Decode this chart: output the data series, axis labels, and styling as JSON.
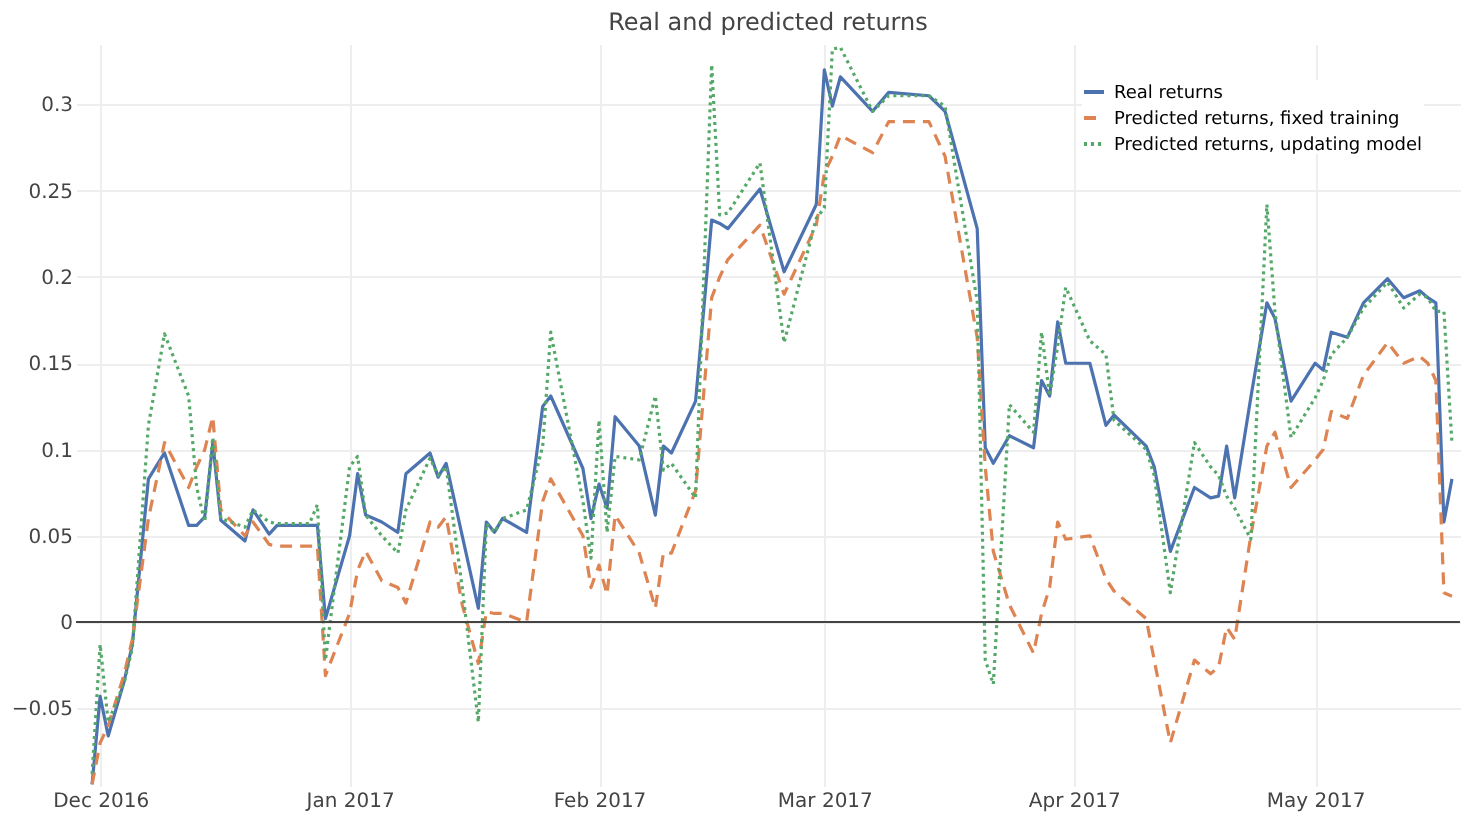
{
  "chart_data": {
    "type": "line",
    "title": "Real and predicted returns",
    "x": [
      "2016-11-30",
      "2016-12-01",
      "2016-12-02",
      "2016-12-04",
      "2016-12-05",
      "2016-12-07",
      "2016-12-09",
      "2016-12-12",
      "2016-12-13",
      "2016-12-14",
      "2016-12-15",
      "2016-12-16",
      "2016-12-19",
      "2016-12-20",
      "2016-12-22",
      "2016-12-23",
      "2016-12-27",
      "2016-12-28",
      "2016-12-29",
      "2017-01-01",
      "2017-01-02",
      "2017-01-03",
      "2017-01-05",
      "2017-01-07",
      "2017-01-08",
      "2017-01-11",
      "2017-01-12",
      "2017-01-13",
      "2017-01-15",
      "2017-01-17",
      "2017-01-18",
      "2017-01-19",
      "2017-01-20",
      "2017-01-23",
      "2017-01-25",
      "2017-01-26",
      "2017-01-30",
      "2017-01-31",
      "2017-02-01",
      "2017-02-02",
      "2017-02-03",
      "2017-02-06",
      "2017-02-08",
      "2017-02-09",
      "2017-02-10",
      "2017-02-13",
      "2017-02-15",
      "2017-02-16",
      "2017-02-17",
      "2017-02-21",
      "2017-02-24",
      "2017-02-28",
      "2017-03-01",
      "2017-03-02",
      "2017-03-03",
      "2017-03-07",
      "2017-03-09",
      "2017-03-14",
      "2017-03-16",
      "2017-03-20",
      "2017-03-21",
      "2017-03-22",
      "2017-03-24",
      "2017-03-27",
      "2017-03-28",
      "2017-03-29",
      "2017-03-30",
      "2017-03-31",
      "2017-04-03",
      "2017-04-05",
      "2017-04-06",
      "2017-04-10",
      "2017-04-11",
      "2017-04-13",
      "2017-04-16",
      "2017-04-18",
      "2017-04-19",
      "2017-04-20",
      "2017-04-21",
      "2017-04-23",
      "2017-04-25",
      "2017-04-26",
      "2017-04-28",
      "2017-05-01",
      "2017-05-02",
      "2017-05-03",
      "2017-05-05",
      "2017-05-07",
      "2017-05-10",
      "2017-05-12",
      "2017-05-14",
      "2017-05-15",
      "2017-05-16",
      "2017-05-17",
      "2017-05-18"
    ],
    "series": [
      {
        "name": "Real returns",
        "color": "#4c72b0",
        "line_style": "solid",
        "values": [
          -0.094,
          -0.043,
          -0.066,
          -0.034,
          -0.013,
          0.083,
          0.098,
          0.056,
          0.056,
          0.061,
          0.104,
          0.059,
          0.047,
          0.065,
          0.051,
          0.056,
          0.056,
          0.056,
          0.002,
          0.05,
          0.086,
          0.062,
          0.058,
          0.052,
          0.086,
          0.098,
          0.084,
          0.092,
          0.05,
          0.008,
          0.058,
          0.052,
          0.06,
          0.052,
          0.125,
          0.131,
          0.089,
          0.06,
          0.08,
          0.066,
          0.119,
          0.102,
          0.062,
          0.102,
          0.098,
          0.128,
          0.233,
          0.231,
          0.228,
          0.251,
          0.203,
          0.242,
          0.32,
          0.299,
          0.316,
          0.296,
          0.307,
          0.305,
          0.296,
          0.228,
          0.101,
          0.092,
          0.108,
          0.101,
          0.14,
          0.131,
          0.174,
          0.15,
          0.15,
          0.114,
          0.12,
          0.102,
          0.09,
          0.041,
          0.078,
          0.072,
          0.073,
          0.102,
          0.072,
          0.13,
          0.185,
          0.176,
          0.128,
          0.15,
          0.146,
          0.168,
          0.165,
          0.185,
          0.199,
          0.188,
          0.192,
          0.188,
          0.185,
          0.058,
          0.083
        ]
      },
      {
        "name": "Predicted returns, fixed training",
        "color": "#dd8452",
        "line_style": "dashed",
        "values": [
          -0.094,
          -0.07,
          -0.06,
          -0.03,
          -0.01,
          0.06,
          0.104,
          0.078,
          0.09,
          0.1,
          0.119,
          0.065,
          0.05,
          0.058,
          0.045,
          0.044,
          0.044,
          0.044,
          -0.031,
          0.005,
          0.03,
          0.041,
          0.024,
          0.02,
          0.011,
          0.058,
          0.055,
          0.061,
          0.01,
          -0.024,
          0.006,
          0.005,
          0.005,
          0.0,
          0.07,
          0.083,
          0.05,
          0.02,
          0.033,
          0.016,
          0.062,
          0.04,
          0.008,
          0.04,
          0.04,
          0.076,
          0.188,
          0.2,
          0.21,
          0.23,
          0.19,
          0.23,
          0.26,
          0.27,
          0.282,
          0.272,
          0.29,
          0.29,
          0.27,
          0.165,
          0.09,
          0.041,
          0.01,
          -0.018,
          0.005,
          0.02,
          0.058,
          0.048,
          0.05,
          0.025,
          0.018,
          0.002,
          -0.022,
          -0.07,
          -0.022,
          -0.03,
          -0.026,
          -0.003,
          -0.01,
          0.05,
          0.102,
          0.11,
          0.078,
          0.094,
          0.1,
          0.122,
          0.118,
          0.143,
          0.162,
          0.15,
          0.154,
          0.15,
          0.14,
          0.017,
          0.015
        ]
      },
      {
        "name": "Predicted returns, updating model",
        "color": "#55a868",
        "line_style": "dotted",
        "values": [
          -0.088,
          -0.013,
          -0.058,
          -0.035,
          -0.015,
          0.114,
          0.167,
          0.131,
          0.078,
          0.058,
          0.107,
          0.06,
          0.055,
          0.065,
          0.058,
          0.057,
          0.057,
          0.068,
          -0.022,
          0.09,
          0.096,
          0.062,
          0.05,
          0.04,
          0.065,
          0.095,
          0.085,
          0.09,
          0.02,
          -0.058,
          0.057,
          0.052,
          0.06,
          0.065,
          0.102,
          0.168,
          0.07,
          0.037,
          0.117,
          0.052,
          0.096,
          0.094,
          0.131,
          0.088,
          0.092,
          0.072,
          0.323,
          0.236,
          0.237,
          0.266,
          0.162,
          0.234,
          0.24,
          0.332,
          0.333,
          0.296,
          0.305,
          0.305,
          0.299,
          0.186,
          -0.022,
          -0.036,
          0.126,
          0.11,
          0.168,
          0.131,
          0.16,
          0.194,
          0.163,
          0.155,
          0.117,
          0.1,
          0.085,
          0.017,
          0.104,
          0.09,
          0.085,
          0.073,
          0.066,
          0.048,
          0.242,
          0.18,
          0.107,
          0.13,
          0.14,
          0.155,
          0.165,
          0.182,
          0.197,
          0.182,
          0.19,
          0.188,
          0.18,
          0.18,
          0.104
        ]
      }
    ],
    "xlim": [
      "2016-11-28",
      "2017-05-19"
    ],
    "xticks": [
      {
        "value": "2016-12-01",
        "label": "Dec 2016"
      },
      {
        "value": "2017-01-01",
        "label": "Jan 2017"
      },
      {
        "value": "2017-02-01",
        "label": "Feb 2017"
      },
      {
        "value": "2017-03-01",
        "label": "Mar 2017"
      },
      {
        "value": "2017-04-01",
        "label": "Apr 2017"
      },
      {
        "value": "2017-05-01",
        "label": "May 2017"
      }
    ],
    "ylim": [
      -0.095,
      0.335
    ],
    "yticks": [
      {
        "value": -0.05,
        "label": "−0.05"
      },
      0,
      0.05,
      0.1,
      0.15,
      0.2,
      0.25,
      0.3
    ],
    "ref_lines": [
      {
        "axis": "y",
        "value": 0,
        "color": "#444444"
      }
    ],
    "grid": true,
    "legend": "top right",
    "marker": "none"
  }
}
